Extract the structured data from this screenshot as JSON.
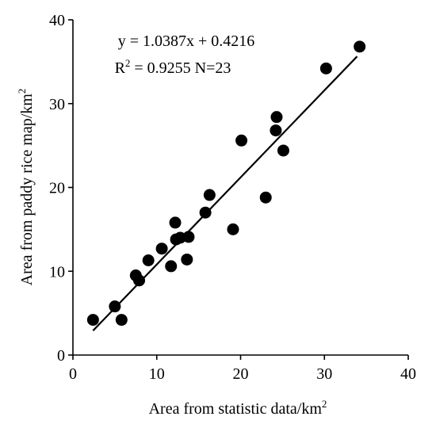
{
  "chart_data": {
    "type": "scatter",
    "title": "",
    "xlabel": "Area from statistic data/km",
    "xlabel_sup": "2",
    "ylabel": "Area from paddy rice map/km",
    "ylabel_sup": "2",
    "xlim": [
      0,
      40
    ],
    "ylim": [
      0,
      40
    ],
    "xticks": [
      "0",
      "10",
      "20",
      "30",
      "40"
    ],
    "yticks": [
      "0",
      "10",
      "20",
      "30",
      "40"
    ],
    "grid": false,
    "legend": "none",
    "equation": "y = 1.0387x + 0.4216",
    "r2_label": "R",
    "r2_sup": "2",
    "r2_text": " = 0.9255 N=23",
    "fit": {
      "slope": 1.0387,
      "intercept": 0.4216,
      "x_range": [
        2.4,
        33.9
      ]
    },
    "series": [
      {
        "points": [
          {
            "x": 2.4,
            "y": 4.2
          },
          {
            "x": 5.0,
            "y": 5.8
          },
          {
            "x": 5.8,
            "y": 4.2
          },
          {
            "x": 7.5,
            "y": 9.5
          },
          {
            "x": 7.9,
            "y": 8.9
          },
          {
            "x": 9.0,
            "y": 11.3
          },
          {
            "x": 10.6,
            "y": 12.7
          },
          {
            "x": 11.7,
            "y": 10.6
          },
          {
            "x": 12.2,
            "y": 15.8
          },
          {
            "x": 12.3,
            "y": 13.8
          },
          {
            "x": 12.8,
            "y": 14.0
          },
          {
            "x": 13.6,
            "y": 11.4
          },
          {
            "x": 13.8,
            "y": 14.1
          },
          {
            "x": 15.8,
            "y": 17.0
          },
          {
            "x": 16.3,
            "y": 19.1
          },
          {
            "x": 19.1,
            "y": 15.0
          },
          {
            "x": 20.1,
            "y": 25.6
          },
          {
            "x": 23.0,
            "y": 18.8
          },
          {
            "x": 24.2,
            "y": 26.8
          },
          {
            "x": 24.3,
            "y": 28.4
          },
          {
            "x": 25.1,
            "y": 24.4
          },
          {
            "x": 30.2,
            "y": 34.2
          },
          {
            "x": 34.2,
            "y": 36.8
          }
        ]
      }
    ]
  }
}
